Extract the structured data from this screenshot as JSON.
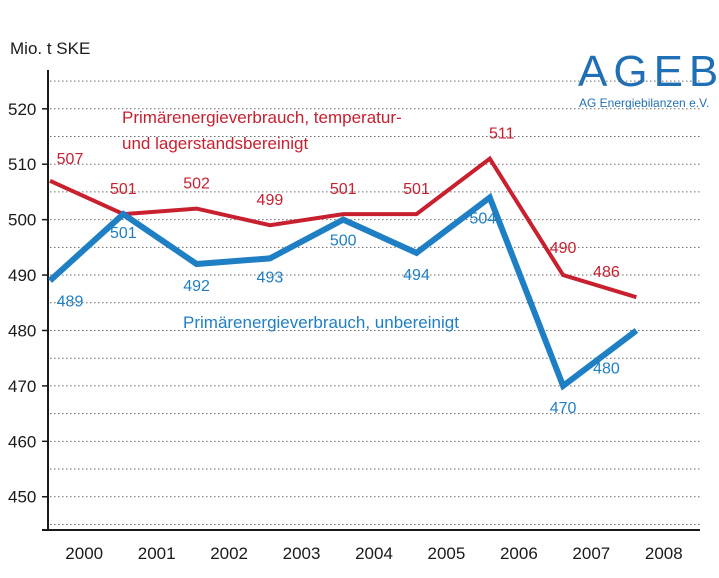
{
  "logo": {
    "main": "AGEB",
    "sub": "AG Energiebilanzen e.V.",
    "color": "#1f6fb5"
  },
  "chart_data": {
    "type": "line",
    "title": "",
    "xlabel": "",
    "ylabel": "Mio. t SKE",
    "ylim": [
      444,
      527
    ],
    "yticks": [
      450,
      460,
      470,
      480,
      490,
      500,
      510,
      520
    ],
    "grid": "horizontal-dotted",
    "categories": [
      "2000",
      "2001",
      "2002",
      "2003",
      "2004",
      "2005",
      "2006",
      "2007",
      "2008"
    ],
    "series": [
      {
        "name_lines": [
          "Primärenergieverbrauch, temperatur-",
          "und lagerstandsbereinigt"
        ],
        "color": "#c8202f",
        "values": [
          507,
          501,
          502,
          499,
          501,
          501,
          511,
          490,
          486
        ],
        "labels": [
          "507",
          "501",
          "502",
          "499",
          "501",
          "501",
          "511",
          "490",
          "486"
        ]
      },
      {
        "name": "Primärenergieverbrauch, unbereinigt",
        "color": "#1f7fc4",
        "values": [
          489,
          501,
          492,
          493,
          500,
          494,
          504,
          470,
          480
        ],
        "labels": [
          "489",
          "501",
          "492",
          "493",
          "500",
          "494",
          "504",
          "470",
          "480"
        ]
      }
    ]
  }
}
